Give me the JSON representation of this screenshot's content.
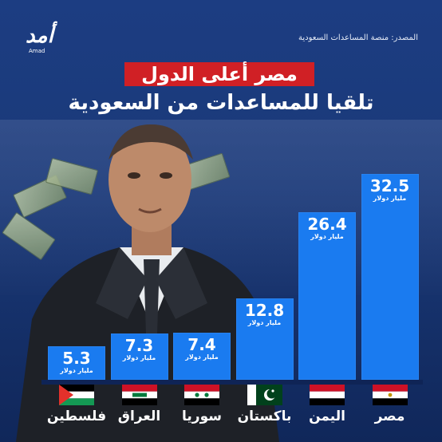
{
  "logo": {
    "text": "أمد",
    "sub": "Amad"
  },
  "source": "المصدر: منصة المساعدات السعودية",
  "title": {
    "line1": "مصر أعلى الدول",
    "line2": "تلقيا للمساعدات من السعودية"
  },
  "colors": {
    "bar": "#1a7bf0",
    "title_bg": "#d02025",
    "background": "#1c3d82"
  },
  "chart_data": {
    "type": "bar",
    "title": "مصر أعلى الدول تلقيا للمساعدات من السعودية",
    "xlabel": "",
    "ylabel": "",
    "unit": "مليار دولار",
    "categories": [
      "فلسطين",
      "العراق",
      "سوريا",
      "باكستان",
      "اليمن",
      "مصر"
    ],
    "values": [
      5.3,
      7.3,
      7.4,
      12.8,
      26.4,
      32.5
    ],
    "value_labels": [
      "5.3",
      "7.3",
      "7.4",
      "12.8",
      "26.4",
      "32.5"
    ],
    "flags": [
      "palestine-flag",
      "iraq-flag",
      "syria-flag",
      "pakistan-flag",
      "yemen-flag",
      "egypt-flag"
    ],
    "ylim": [
      0,
      32.5
    ],
    "grid": false,
    "legend": "none"
  }
}
